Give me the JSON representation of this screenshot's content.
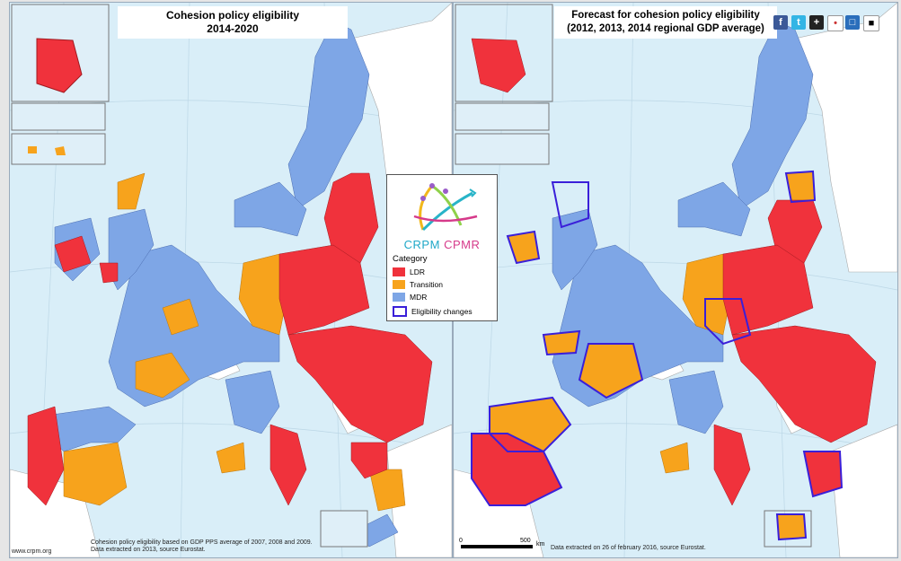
{
  "left_panel": {
    "title_line1": "Cohesion policy eligibility",
    "title_line2": "2014-2020",
    "footer_line1": "Cohesion policy eligibility based on GDP PPS average of 2007, 2008 and 2009.",
    "footer_line2": "Data extracted on 2013, source Eurostat.",
    "credit": "www.crpm.org"
  },
  "right_panel": {
    "title_line1": "Forecast for cohesion policy eligibility",
    "title_line2": "(2012, 2013, 2014 regional GDP average)",
    "footer": "Data extracted on 26 of february 2016, source Eurostat.",
    "scale_start": "0",
    "scale_end": "500",
    "scale_unit": "km"
  },
  "legend": {
    "logo_a": "CRPM",
    "logo_b": "CPMR",
    "title": "Category",
    "items": [
      {
        "label": "LDR",
        "color": "#f0323c"
      },
      {
        "label": "Transition",
        "color": "#f7a31c"
      },
      {
        "label": "MDR",
        "color": "#7ea6e6"
      }
    ],
    "changes_label": "Eligibility changes",
    "changes_color": "#3a1fd9"
  },
  "share_icons": [
    "facebook-icon",
    "twitter-icon",
    "addthis-icon",
    "digg-icon",
    "linkedin-icon",
    "delicious-icon"
  ]
}
